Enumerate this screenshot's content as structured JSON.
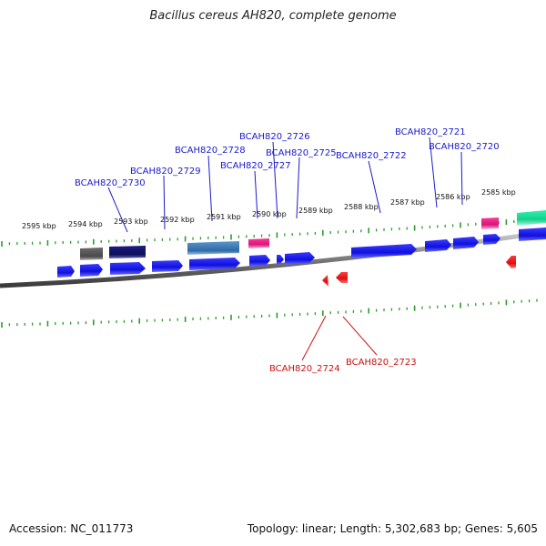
{
  "title": "Bacillus cereus AH820, complete genome",
  "footer": {
    "accession": "Accession: NC_011773",
    "info": "Topology: linear; Length: 5,302,683 bp; Genes: 5,605"
  },
  "colors": {
    "background": "#ffffff",
    "backbone": "#808080",
    "tick": "#2e9a2e",
    "forward_gene": "#1515e0",
    "reverse_gene": "#e01010",
    "forward_label": "#1a1acc",
    "reverse_label": "#cc1010",
    "feature_dark_gray": "#555555",
    "feature_navy": "#14146e",
    "feature_steelblue": "#3d7ab5",
    "feature_magenta": "#e0157a",
    "feature_teal": "#18d69a"
  },
  "scale_labels": [
    "2595 kbp",
    "2594 kbp",
    "2593 kbp",
    "2592 kbp",
    "2591 kbp",
    "2590 kbp",
    "2589 kbp",
    "2588 kbp",
    "2587 kbp",
    "2586 kbp",
    "2585 kbp"
  ],
  "forward_gene_labels": [
    "BCAH820_2730",
    "BCAH820_2729",
    "BCAH820_2728",
    "BCAH820_2727",
    "BCAH820_2726",
    "BCAH820_2725",
    "BCAH820_2722",
    "BCAH820_2721",
    "BCAH820_2720"
  ],
  "reverse_gene_labels": [
    "BCAH820_2724",
    "BCAH820_2723"
  ]
}
